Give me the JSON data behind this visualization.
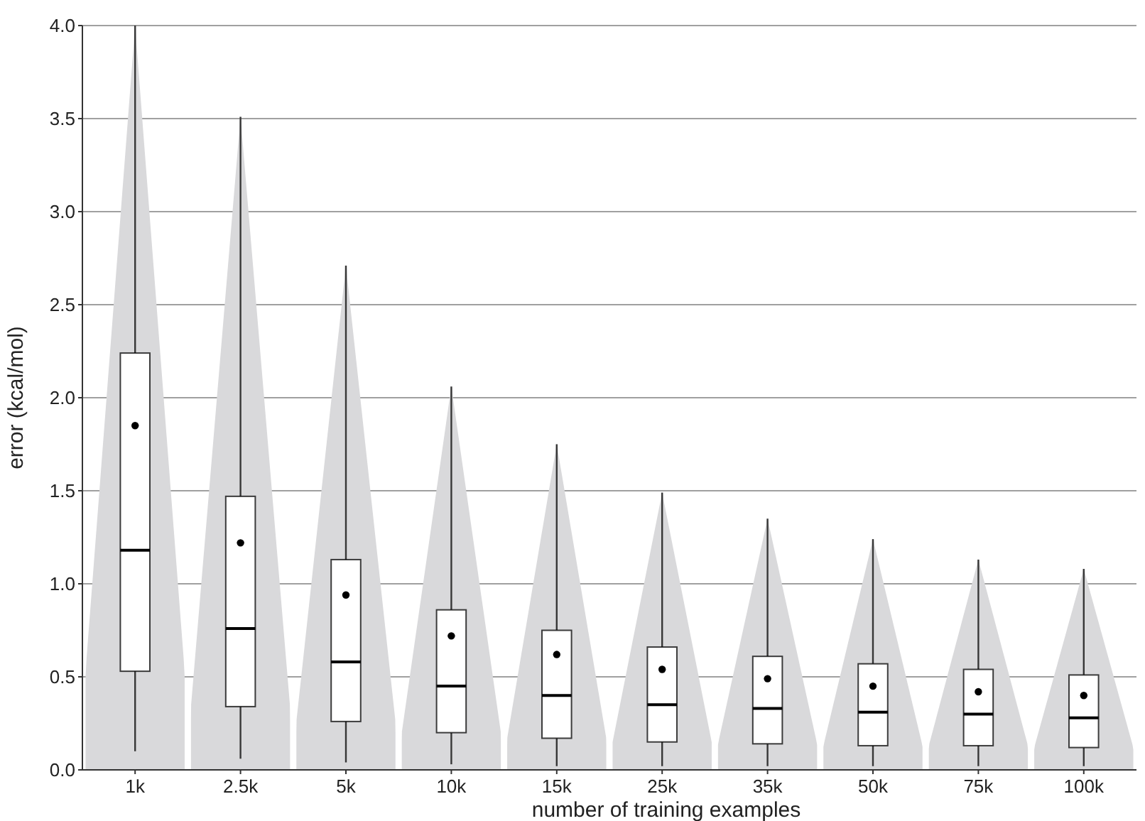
{
  "chart_data": {
    "type": "box",
    "xlabel": "number of training examples",
    "ylabel": "error (kcal/mol)",
    "categories": [
      "1k",
      "2.5k",
      "5k",
      "10k",
      "15k",
      "25k",
      "35k",
      "50k",
      "75k",
      "100k"
    ],
    "ylim": [
      0,
      4
    ],
    "yticks": [
      {
        "value": 0,
        "label": "0.0"
      },
      {
        "value": 0.5,
        "label": "0.5"
      },
      {
        "value": 1,
        "label": "1.0"
      },
      {
        "value": 1.5,
        "label": "1.5"
      },
      {
        "value": 2,
        "label": "2.0"
      },
      {
        "value": 2.5,
        "label": "2.5"
      },
      {
        "value": 3,
        "label": "3.0"
      },
      {
        "value": 3.5,
        "label": "3.5"
      },
      {
        "value": 4,
        "label": "4.0"
      }
    ],
    "grid": "y",
    "color": "#000000",
    "boxes": [
      {
        "low": 0.1,
        "q1": 0.53,
        "median": 1.18,
        "q3": 2.24,
        "high": 4.0,
        "mean": 1.85
      },
      {
        "low": 0.06,
        "q1": 0.34,
        "median": 0.76,
        "q3": 1.47,
        "high": 3.51,
        "mean": 1.22
      },
      {
        "low": 0.04,
        "q1": 0.26,
        "median": 0.58,
        "q3": 1.13,
        "high": 2.71,
        "mean": 0.94
      },
      {
        "low": 0.03,
        "q1": 0.2,
        "median": 0.45,
        "q3": 0.86,
        "high": 2.06,
        "mean": 0.72
      },
      {
        "low": 0.02,
        "q1": 0.17,
        "median": 0.4,
        "q3": 0.75,
        "high": 1.75,
        "mean": 0.62
      },
      {
        "low": 0.02,
        "q1": 0.15,
        "median": 0.35,
        "q3": 0.66,
        "high": 1.49,
        "mean": 0.54
      },
      {
        "low": 0.02,
        "q1": 0.14,
        "median": 0.33,
        "q3": 0.61,
        "high": 1.35,
        "mean": 0.49
      },
      {
        "low": 0.02,
        "q1": 0.13,
        "median": 0.31,
        "q3": 0.57,
        "high": 1.24,
        "mean": 0.45
      },
      {
        "low": 0.02,
        "q1": 0.13,
        "median": 0.3,
        "q3": 0.54,
        "high": 1.13,
        "mean": 0.42
      },
      {
        "low": 0.02,
        "q1": 0.12,
        "median": 0.28,
        "q3": 0.51,
        "high": 1.08,
        "mean": 0.4
      }
    ]
  }
}
